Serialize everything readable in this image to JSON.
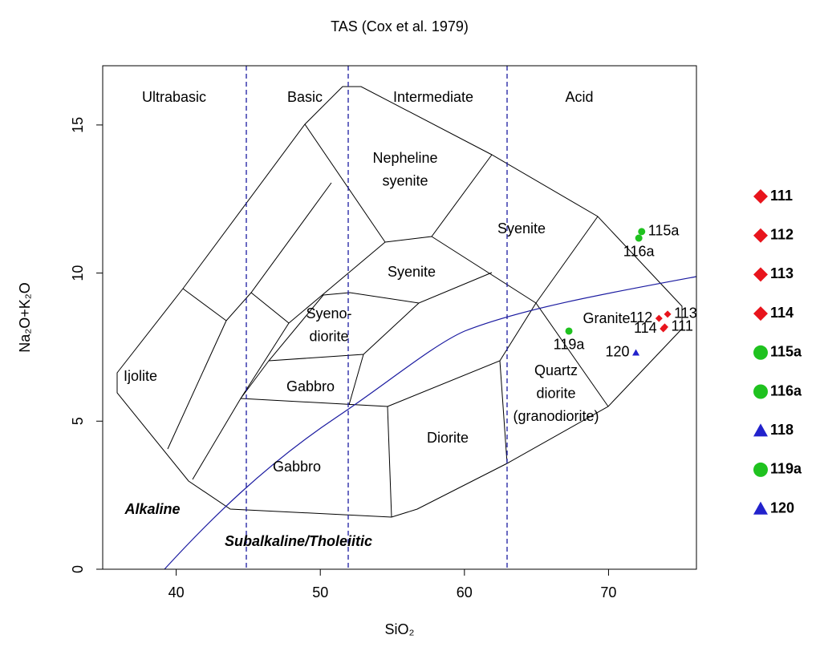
{
  "chart_data": {
    "type": "scatter",
    "title": "TAS (Cox et al. 1979)",
    "x_label": "SiO₂",
    "y_label": "Na₂O+K₂O",
    "xlim": [
      34.9,
      76.1
    ],
    "ylim": [
      0,
      17
    ],
    "xticks": [
      40,
      50,
      60,
      70
    ],
    "yticks": [
      0,
      5,
      10,
      15
    ],
    "regions": [
      "Ultrabasic",
      "Basic",
      "Intermediate",
      "Acid"
    ],
    "fields": [
      [
        "Nepheline",
        "syenite"
      ],
      [
        "Syenite"
      ],
      [
        "Syenite"
      ],
      [
        "Syeno-",
        "diorite"
      ],
      [
        "Granite"
      ],
      [
        "Ijolite"
      ],
      [
        "Gabbro"
      ],
      [
        "Quartz",
        "diorite",
        "(granodiorite)"
      ],
      [
        "Diorite"
      ],
      [
        "Gabbro"
      ]
    ],
    "series_labels": [
      "Alkaline",
      "Subalkaline/Tholeiitic"
    ],
    "series": [
      {
        "name": "111",
        "color": "#e8141c",
        "marker": "diamond",
        "x": [
          73.9
        ],
        "values": [
          8.18
        ],
        "label_side": "right"
      },
      {
        "name": "112",
        "color": "#e8141c",
        "marker": "diamond",
        "x": [
          73.5
        ],
        "values": [
          8.47
        ],
        "label_side": "left"
      },
      {
        "name": "113",
        "color": "#e8141c",
        "marker": "diamond",
        "x": [
          74.1
        ],
        "values": [
          8.61
        ],
        "label_side": "right"
      },
      {
        "name": "114",
        "color": "#e8141c",
        "marker": "diamond",
        "x": [
          73.8
        ],
        "values": [
          8.12
        ],
        "label_side": "left"
      },
      {
        "name": "115a",
        "color": "#1fc21f",
        "marker": "circle",
        "x": [
          72.3
        ],
        "values": [
          11.4
        ],
        "label_side": "right"
      },
      {
        "name": "116a",
        "color": "#1fc21f",
        "marker": "circle",
        "x": [
          72.1
        ],
        "values": [
          11.18
        ],
        "label_side": "below"
      },
      {
        "name": "118",
        "color": "#2222cc",
        "marker": "triangle",
        "x": [
          null
        ],
        "values": [
          null
        ],
        "label_side": "left"
      },
      {
        "name": "119a",
        "color": "#1fc21f",
        "marker": "circle",
        "x": [
          67.25
        ],
        "values": [
          8.04
        ],
        "label_side": "below"
      },
      {
        "name": "120",
        "color": "#2222cc",
        "marker": "triangle",
        "x": [
          71.9
        ],
        "values": [
          7.31
        ],
        "label_side": "left"
      }
    ]
  }
}
